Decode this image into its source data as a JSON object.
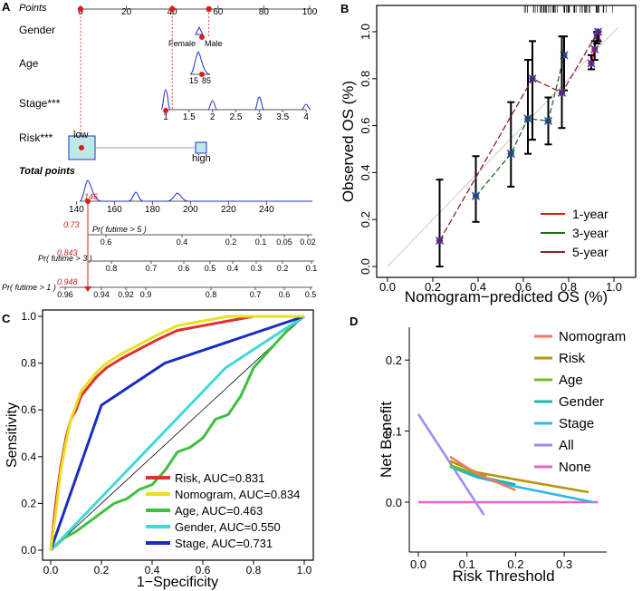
{
  "colors": {
    "red": "#dd1c1c",
    "darkred": "#8b2323",
    "green": "#1f6e1f",
    "blue": "#1f1fcc",
    "ltred": "#e03030",
    "yellow": "#e8e020",
    "rocgreen": "#40c040",
    "cyan": "#40d8d8",
    "navy": "#1a2cc0",
    "salmon": "#f07a6a",
    "gold": "#b8960a",
    "lime": "#7ab820",
    "teal": "#22b8a0",
    "sky": "#2fb8e8",
    "lavender": "#a48af0",
    "pink": "#f060c8",
    "nomofill": "#bfe9e6"
  },
  "chart_data": [
    {
      "panel": "A",
      "type": "nomogram",
      "rows": {
        "points": {
          "label": "Points",
          "ticks": [
            "0",
            "20",
            "40",
            "60",
            "80",
            "100"
          ],
          "values": [
            0,
            20,
            40,
            60,
            80,
            100
          ],
          "pointer_points": [
            0,
            40,
            56
          ]
        },
        "gender": {
          "label": "Gender",
          "levels": [
            "Female",
            "Male"
          ],
          "points": [
            56,
            56
          ]
        },
        "age": {
          "label": "Age",
          "ticks": [
            "15",
            "85"
          ]
        },
        "stage": {
          "label": "Stage***",
          "ticks": [
            "1",
            "1.5",
            "2",
            "2.5",
            "3",
            "3.5",
            "4"
          ],
          "values": [
            1,
            1.5,
            2,
            2.5,
            3,
            3.5,
            4
          ]
        },
        "risk": {
          "label": "Risk***",
          "levels": [
            "low",
            "high"
          ]
        },
        "total": {
          "label": "Total points",
          "ticks": [
            "140",
            "160",
            "180",
            "200",
            "220",
            "240"
          ],
          "values": [
            140,
            160,
            180,
            200,
            220,
            240
          ],
          "marked": "146"
        },
        "pr5": {
          "label": "Pr( futime > 5 )",
          "marked": "0.73",
          "ticks": [
            "0.6",
            "0.4",
            "0.2",
            "0.1",
            "0.05",
            "0.02"
          ]
        },
        "pr3": {
          "label": "Pr( futime > 3 )",
          "marked": "0.843",
          "ticks": [
            "0.8",
            "0.7",
            "0.6",
            "0.5",
            "0.4",
            "0.3",
            "0.2",
            "0.1"
          ]
        },
        "pr1": {
          "label": "Pr( futime > 1 )",
          "marked": "0.948",
          "ticks": [
            "0.96",
            "0.94",
            "0.92",
            "0.9",
            "0.8",
            "0.7",
            "0.6",
            "0.5"
          ]
        }
      }
    },
    {
      "panel": "B",
      "type": "calibration",
      "xlabel": "Nomogram−predicted OS (%)",
      "ylabel": "Observed OS (%)",
      "xlim": [
        0,
        1
      ],
      "ylim": [
        0,
        1
      ],
      "xticks": [
        "0.0",
        "0.2",
        "0.4",
        "0.6",
        "0.8",
        "1.0"
      ],
      "yticks": [
        "0.0",
        "0.2",
        "0.4",
        "0.6",
        "0.8",
        "1.0"
      ],
      "legend": [
        "1-year",
        "3-year",
        "5-year"
      ],
      "legend_position": "bottom-right",
      "series": [
        {
          "name": "1-year",
          "color": "red",
          "points": [
            [
              0.9,
              0.865
            ],
            [
              0.915,
              0.925
            ],
            [
              0.925,
              0.98
            ]
          ],
          "lo": [
            0.84,
            0.88,
            0.95
          ],
          "hi": [
            0.9,
            0.96,
            1.0
          ]
        },
        {
          "name": "3-year",
          "color": "green",
          "points": [
            [
              0.39,
              0.3
            ],
            [
              0.545,
              0.48
            ],
            [
              0.62,
              0.63
            ],
            [
              0.71,
              0.62
            ],
            [
              0.78,
              0.9
            ]
          ],
          "lo": [
            0.19,
            0.34,
            0.48,
            0.52,
            0.75
          ],
          "hi": [
            0.47,
            0.7,
            0.88,
            0.72,
            0.98
          ]
        },
        {
          "name": "5-year",
          "color": "darkred",
          "points": [
            [
              0.23,
              0.11
            ],
            [
              0.64,
              0.8
            ],
            [
              0.77,
              0.74
            ],
            [
              0.93,
              1.0
            ]
          ],
          "lo": [
            0.0,
            0.54,
            0.59,
            0.96
          ],
          "hi": [
            0.37,
            0.96,
            0.98,
            1.0
          ]
        }
      ]
    },
    {
      "panel": "C",
      "type": "line",
      "xlabel": "1−Specificity",
      "ylabel": "Sensitivity",
      "xlim": [
        0,
        1
      ],
      "ylim": [
        0,
        1
      ],
      "xticks": [
        "0.0",
        "0.2",
        "0.4",
        "0.6",
        "0.8",
        "1.0"
      ],
      "yticks": [
        "0.0",
        "0.2",
        "0.4",
        "0.6",
        "0.8",
        "1.0"
      ],
      "legend_position": "bottom-right",
      "series": [
        {
          "name": "Risk, AUC=0.831",
          "color": "ltred",
          "x": [
            0,
            0.02,
            0.04,
            0.06,
            0.08,
            0.1,
            0.12,
            0.15,
            0.18,
            0.22,
            0.28,
            0.35,
            0.42,
            0.5,
            0.6,
            0.7,
            0.8,
            0.9,
            1.0
          ],
          "y": [
            0,
            0.2,
            0.36,
            0.48,
            0.56,
            0.6,
            0.66,
            0.7,
            0.74,
            0.78,
            0.82,
            0.86,
            0.9,
            0.94,
            0.96,
            0.98,
            1.0,
            1.0,
            1.0
          ]
        },
        {
          "name": "Nomogram, AUC=0.834",
          "color": "yellow",
          "x": [
            0,
            0.02,
            0.04,
            0.06,
            0.08,
            0.1,
            0.12,
            0.15,
            0.18,
            0.22,
            0.28,
            0.35,
            0.42,
            0.5,
            0.6,
            0.7,
            0.8,
            0.9,
            1.0
          ],
          "y": [
            0,
            0.16,
            0.34,
            0.46,
            0.56,
            0.62,
            0.68,
            0.72,
            0.76,
            0.8,
            0.84,
            0.88,
            0.92,
            0.96,
            0.98,
            1.0,
            1.0,
            1.0,
            1.0
          ]
        },
        {
          "name": "Age, AUC=0.463",
          "color": "rocgreen",
          "x": [
            0,
            0.05,
            0.1,
            0.15,
            0.2,
            0.25,
            0.3,
            0.35,
            0.4,
            0.45,
            0.5,
            0.55,
            0.6,
            0.65,
            0.7,
            0.75,
            0.8,
            0.85,
            0.9,
            0.95,
            1.0
          ],
          "y": [
            0,
            0.05,
            0.08,
            0.12,
            0.16,
            0.2,
            0.22,
            0.26,
            0.28,
            0.34,
            0.42,
            0.44,
            0.48,
            0.56,
            0.58,
            0.66,
            0.78,
            0.84,
            0.9,
            0.96,
            1.0
          ]
        },
        {
          "name": "Gender, AUC=0.550",
          "color": "cyan",
          "x": [
            0,
            0.69,
            1.0
          ],
          "y": [
            0,
            0.78,
            1.0
          ]
        },
        {
          "name": "Stage, AUC=0.731",
          "color": "navy",
          "x": [
            0,
            0.2,
            0.45,
            1.0
          ],
          "y": [
            0,
            0.62,
            0.8,
            1.0
          ]
        }
      ]
    },
    {
      "panel": "D",
      "type": "line",
      "xlabel": "Risk Threshold",
      "ylabel": "Net Benefit",
      "xlim": [
        -0.015,
        0.385
      ],
      "ylim": [
        -0.035,
        0.215
      ],
      "xticks": [
        "0.0",
        "0.1",
        "0.2",
        "0.3"
      ],
      "yticks": [
        "0.0",
        "0.1",
        "0.2"
      ],
      "legend_position": "top-right",
      "series": [
        {
          "name": "Nomogram",
          "color": "salmon",
          "x": [
            0.065,
            0.12,
            0.2
          ],
          "y": [
            0.064,
            0.04,
            0.017
          ]
        },
        {
          "name": "Risk",
          "color": "gold",
          "x": [
            0.065,
            0.12,
            0.2,
            0.35
          ],
          "y": [
            0.058,
            0.042,
            0.032,
            0.014
          ]
        },
        {
          "name": "Age",
          "color": "lime",
          "x": [
            0.065,
            0.1,
            0.14
          ],
          "y": [
            0.052,
            0.044,
            0.036
          ]
        },
        {
          "name": "Gender",
          "color": "teal",
          "x": [
            0.065,
            0.12,
            0.2
          ],
          "y": [
            0.052,
            0.037,
            0.025
          ]
        },
        {
          "name": "Stage",
          "color": "sky",
          "x": [
            0.065,
            0.12,
            0.2,
            0.36
          ],
          "y": [
            0.05,
            0.035,
            0.022,
            0.0
          ]
        },
        {
          "name": "All",
          "color": "lavender",
          "x": [
            0.0,
            0.135
          ],
          "y": [
            0.124,
            -0.018
          ]
        },
        {
          "name": "None",
          "color": "pink",
          "x": [
            0.0,
            0.37
          ],
          "y": [
            0.0,
            0.0
          ]
        }
      ]
    }
  ],
  "panels": {
    "a": "A",
    "b": "B",
    "c": "C",
    "d": "D"
  }
}
